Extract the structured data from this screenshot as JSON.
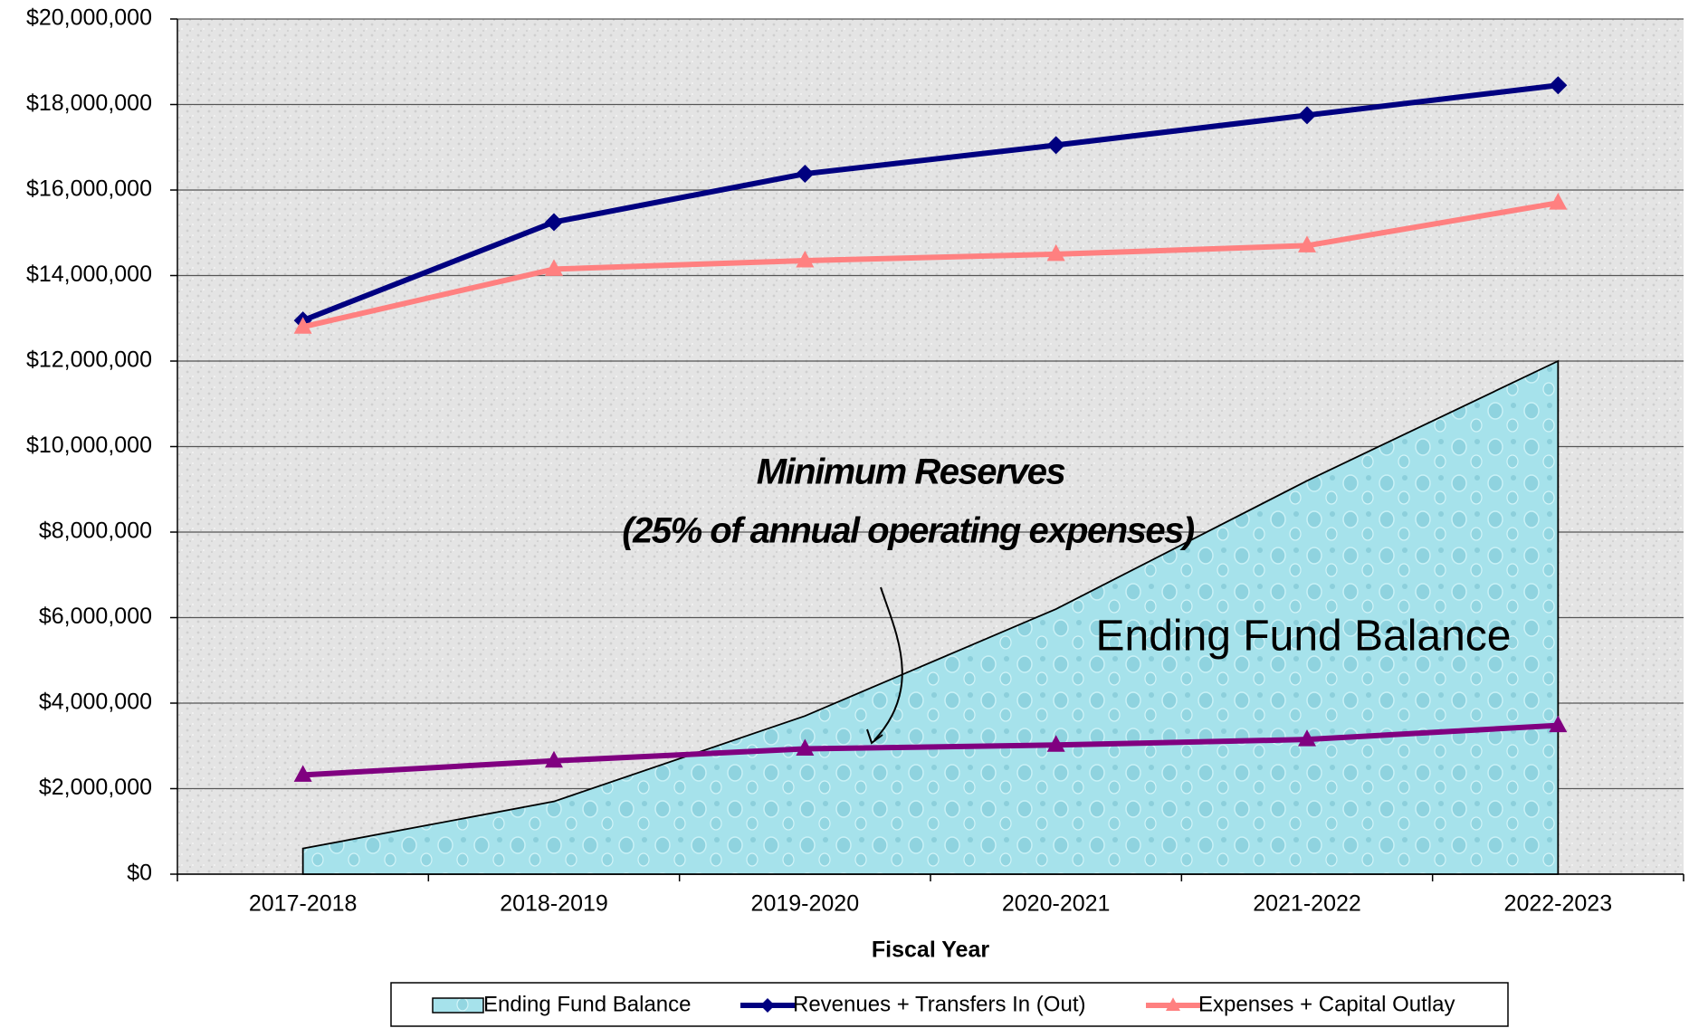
{
  "chart_data": {
    "type": "line",
    "x_label": "Fiscal Year",
    "categories": [
      "2017-2018",
      "2018-2019",
      "2019-2020",
      "2020-2021",
      "2021-2022",
      "2022-2023"
    ],
    "series": [
      {
        "name": "Ending Fund Balance",
        "style": "area",
        "color": "#a6e2eb",
        "marker": "none",
        "values": [
          600000,
          1700000,
          3700000,
          6200000,
          9200000,
          12000000
        ]
      },
      {
        "name": "Revenues + Transfers In (Out)",
        "style": "line",
        "color": "#000080",
        "marker": "diamond",
        "values": [
          12950000,
          15250000,
          16380000,
          17050000,
          17750000,
          18450000
        ]
      },
      {
        "name": "Expenses + Capital Outlay",
        "style": "line",
        "color": "#ff8080",
        "marker": "triangle",
        "values": [
          12800000,
          14150000,
          14350000,
          14500000,
          14700000,
          15700000
        ]
      },
      {
        "style": "line",
        "color": "#800080",
        "marker": "triangle",
        "values": [
          2320000,
          2650000,
          2930000,
          3020000,
          3150000,
          3480000
        ]
      }
    ],
    "annotations": [
      "Minimum Reserves",
      "(25% of annual operating expenses)",
      "Ending Fund Balance"
    ],
    "ylim": [
      0,
      20000000
    ],
    "yticks": [
      {
        "value": 0,
        "label": "$0"
      },
      {
        "value": 2000000,
        "label": "$2,000,000"
      },
      {
        "value": 4000000,
        "label": "$4,000,000"
      },
      {
        "value": 6000000,
        "label": "$6,000,000"
      },
      {
        "value": 8000000,
        "label": "$8,000,000"
      },
      {
        "value": 10000000,
        "label": "$10,000,000"
      },
      {
        "value": 12000000,
        "label": "$12,000,000"
      },
      {
        "value": 14000000,
        "label": "$14,000,000"
      },
      {
        "value": 16000000,
        "label": "$16,000,000"
      },
      {
        "value": 18000000,
        "label": "$18,000,000"
      },
      {
        "value": 20000000,
        "label": "$20,000,000"
      }
    ],
    "grid": true,
    "legend": "bottom"
  }
}
